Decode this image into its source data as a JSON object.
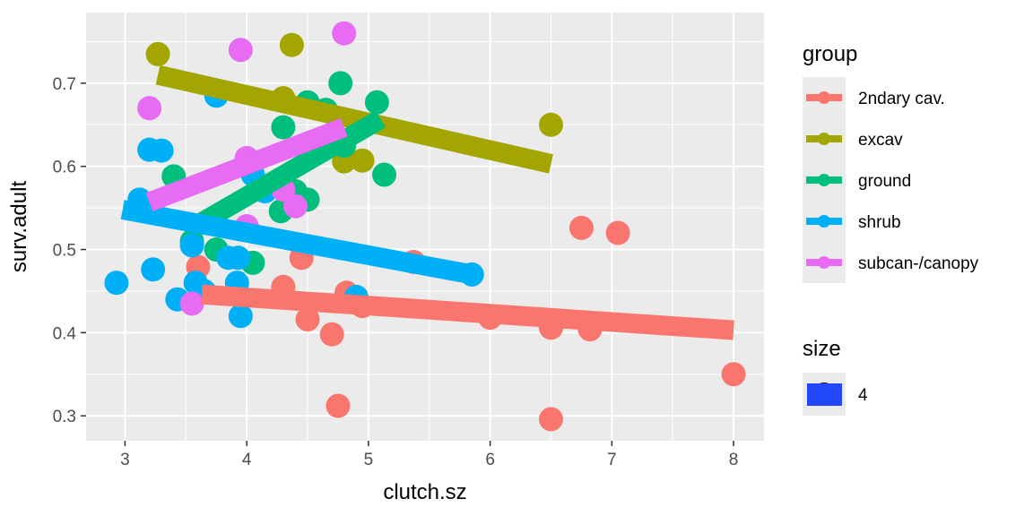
{
  "chart_data": {
    "type": "scatter",
    "xlabel": "clutch.sz",
    "ylabel": "surv.adult",
    "xlim": [
      2.68,
      8.25
    ],
    "ylim": [
      0.27,
      0.785
    ],
    "x_ticks": [
      3,
      4,
      5,
      6,
      7,
      8
    ],
    "y_ticks": [
      0.3,
      0.4,
      0.5,
      0.6,
      0.7
    ],
    "x_tick_labels": [
      "3",
      "4",
      "5",
      "6",
      "7",
      "8"
    ],
    "y_tick_labels": [
      "0.3",
      "0.4",
      "0.5",
      "0.6",
      "0.7"
    ],
    "grid": true,
    "legend_position": "right",
    "legend": {
      "group_title": "group",
      "size_title": "size",
      "size_label": "4",
      "size_key_color": "#2247f9"
    },
    "series": [
      {
        "name": "2ndary cav.",
        "color": "#F8766D",
        "points": [
          [
            3.6,
            0.479
          ],
          [
            4.3,
            0.455
          ],
          [
            4.45,
            0.49
          ],
          [
            4.5,
            0.416
          ],
          [
            4.7,
            0.398
          ],
          [
            4.75,
            0.312
          ],
          [
            4.82,
            0.448
          ],
          [
            4.95,
            0.432
          ],
          [
            5.37,
            0.485
          ],
          [
            6.0,
            0.418
          ],
          [
            6.5,
            0.406
          ],
          [
            6.5,
            0.296
          ],
          [
            6.75,
            0.526
          ],
          [
            6.82,
            0.404
          ],
          [
            7.05,
            0.52
          ],
          [
            8.0,
            0.35
          ]
        ],
        "fit": [
          [
            3.63,
            0.446
          ],
          [
            8.0,
            0.403
          ]
        ]
      },
      {
        "name": "excav",
        "color": "#A3A500",
        "points": [
          [
            3.27,
            0.735
          ],
          [
            4.3,
            0.682
          ],
          [
            4.37,
            0.746
          ],
          [
            4.8,
            0.606
          ],
          [
            4.95,
            0.607
          ],
          [
            6.5,
            0.65
          ]
        ],
        "fit": [
          [
            3.27,
            0.71
          ],
          [
            6.5,
            0.603
          ]
        ]
      },
      {
        "name": "ground",
        "color": "#00BF7D",
        "points": [
          [
            3.4,
            0.588
          ],
          [
            3.55,
            0.51
          ],
          [
            3.75,
            0.5
          ],
          [
            4.05,
            0.484
          ],
          [
            4.28,
            0.546
          ],
          [
            4.3,
            0.647
          ],
          [
            4.4,
            0.57
          ],
          [
            4.5,
            0.56
          ],
          [
            4.5,
            0.677
          ],
          [
            4.65,
            0.668
          ],
          [
            4.77,
            0.7
          ],
          [
            4.8,
            0.625
          ],
          [
            5.07,
            0.677
          ],
          [
            5.13,
            0.59
          ]
        ],
        "fit": [
          [
            3.55,
            0.526
          ],
          [
            5.1,
            0.657
          ]
        ]
      },
      {
        "name": "shrub",
        "color": "#00B0F6",
        "points": [
          [
            2.93,
            0.46
          ],
          [
            3.12,
            0.56
          ],
          [
            3.2,
            0.62
          ],
          [
            3.23,
            0.476
          ],
          [
            3.3,
            0.619
          ],
          [
            3.43,
            0.44
          ],
          [
            3.55,
            0.505
          ],
          [
            3.58,
            0.46
          ],
          [
            3.65,
            0.45
          ],
          [
            3.75,
            0.685
          ],
          [
            3.85,
            0.49
          ],
          [
            3.92,
            0.46
          ],
          [
            3.93,
            0.49
          ],
          [
            3.95,
            0.42
          ],
          [
            4.05,
            0.59
          ],
          [
            4.15,
            0.57
          ],
          [
            4.9,
            0.443
          ],
          [
            5.85,
            0.47
          ]
        ],
        "fit": [
          [
            2.98,
            0.548
          ],
          [
            5.85,
            0.47
          ]
        ]
      },
      {
        "name": "subcan-/canopy",
        "color": "#E76BF3",
        "points": [
          [
            3.2,
            0.67
          ],
          [
            3.55,
            0.435
          ],
          [
            3.95,
            0.74
          ],
          [
            4.0,
            0.528
          ],
          [
            4.0,
            0.61
          ],
          [
            4.3,
            0.572
          ],
          [
            4.4,
            0.552
          ],
          [
            4.8,
            0.76
          ]
        ],
        "fit": [
          [
            3.2,
            0.557
          ],
          [
            4.8,
            0.647
          ]
        ]
      }
    ]
  }
}
